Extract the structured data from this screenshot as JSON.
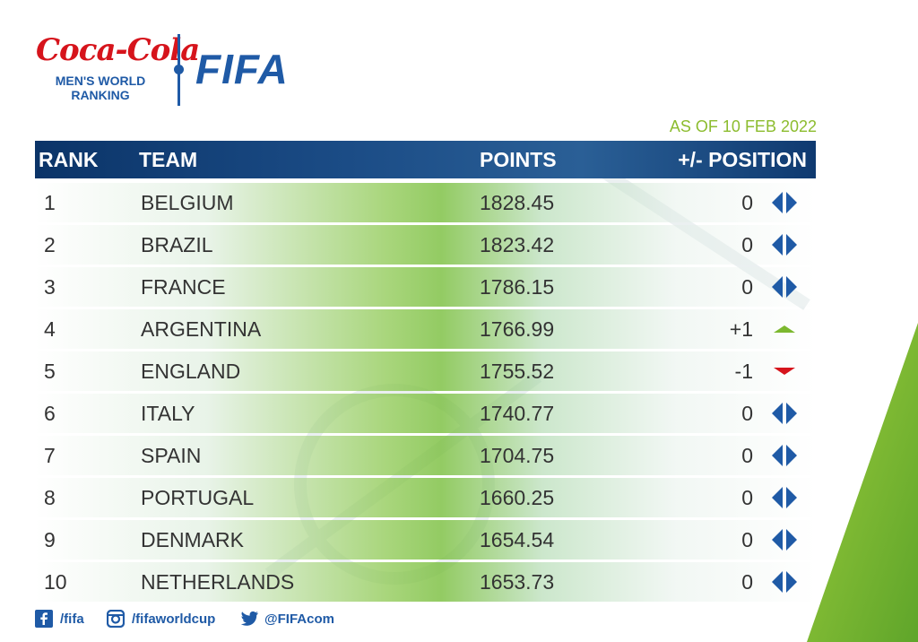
{
  "logo": {
    "sponsor": "Coca-Cola",
    "ranking_title_line1": "MEN'S WORLD",
    "ranking_title_line2": "RANKING",
    "fifa": "FIFA"
  },
  "date_label": "AS OF 10 FEB 2022",
  "table": {
    "headers": {
      "rank": "RANK",
      "team": "TEAM",
      "points": "POINTS",
      "position": "+/- POSITION"
    },
    "rows": [
      {
        "rank": "1",
        "team": "BELGIUM",
        "points": "1828.45",
        "change": "0",
        "trend": "same"
      },
      {
        "rank": "2",
        "team": "BRAZIL",
        "points": "1823.42",
        "change": "0",
        "trend": "same"
      },
      {
        "rank": "3",
        "team": "FRANCE",
        "points": "1786.15",
        "change": "0",
        "trend": "same"
      },
      {
        "rank": "4",
        "team": "ARGENTINA",
        "points": "1766.99",
        "change": "+1",
        "trend": "up"
      },
      {
        "rank": "5",
        "team": "ENGLAND",
        "points": "1755.52",
        "change": "-1",
        "trend": "down"
      },
      {
        "rank": "6",
        "team": "ITALY",
        "points": "1740.77",
        "change": "0",
        "trend": "same"
      },
      {
        "rank": "7",
        "team": "SPAIN",
        "points": "1704.75",
        "change": "0",
        "trend": "same"
      },
      {
        "rank": "8",
        "team": "PORTUGAL",
        "points": "1660.25",
        "change": "0",
        "trend": "same"
      },
      {
        "rank": "9",
        "team": "DENMARK",
        "points": "1654.54",
        "change": "0",
        "trend": "same"
      },
      {
        "rank": "10",
        "team": "NETHERLANDS",
        "points": "1653.73",
        "change": "0",
        "trend": "same"
      }
    ]
  },
  "footer": {
    "facebook": {
      "icon": "facebook-icon",
      "handle": "/fifa"
    },
    "instagram": {
      "icon": "instagram-icon",
      "handle": "/fifaworldcup"
    },
    "twitter": {
      "icon": "twitter-icon",
      "handle": "@FIFAcom"
    }
  },
  "colors": {
    "brand_blue": "#1f5aa6",
    "header_navy": "#0b3468",
    "coke_red": "#d6141c",
    "date_green": "#8cbc2e",
    "up_green": "#7cb82f",
    "down_red": "#d6141c"
  }
}
